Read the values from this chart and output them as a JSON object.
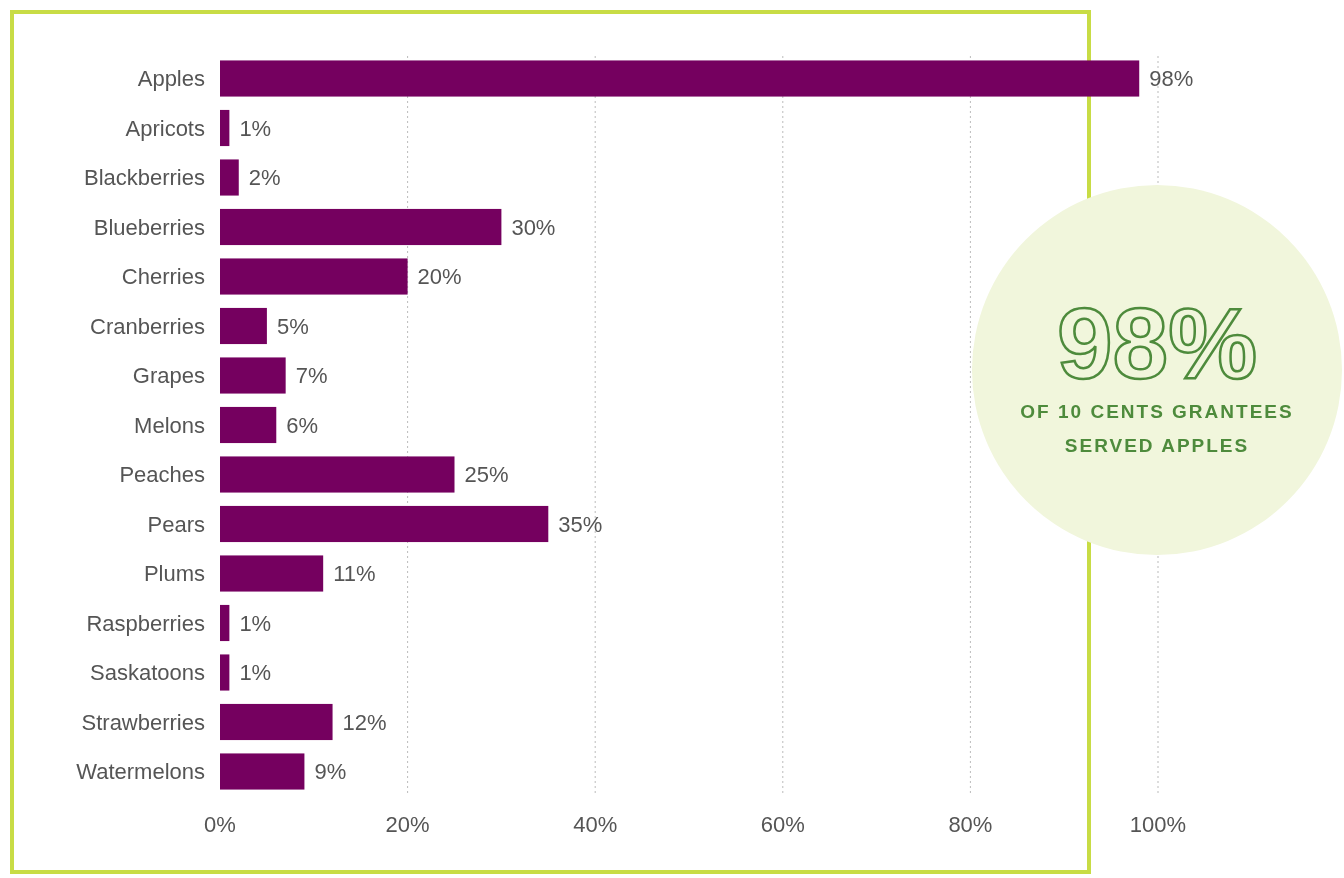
{
  "chart_data": {
    "type": "bar",
    "orientation": "horizontal",
    "categories": [
      "Apples",
      "Apricots",
      "Blackberries",
      "Blueberries",
      "Cherries",
      "Cranberries",
      "Grapes",
      "Melons",
      "Peaches",
      "Pears",
      "Plums",
      "Raspberries",
      "Saskatoons",
      "Strawberries",
      "Watermelons"
    ],
    "values": [
      98,
      1,
      2,
      30,
      20,
      5,
      7,
      6,
      25,
      35,
      11,
      1,
      1,
      12,
      9
    ],
    "value_labels": [
      "98%",
      "1%",
      "2%",
      "30%",
      "20%",
      "5%",
      "7%",
      "6%",
      "25%",
      "35%",
      "11%",
      "1%",
      "1%",
      "12%",
      "9%"
    ],
    "color": "#75005f",
    "xlim": [
      0,
      100
    ],
    "xticks": [
      {
        "value": 0,
        "label": "0%"
      },
      {
        "value": 20,
        "label": "20%"
      },
      {
        "value": 40,
        "label": "40%"
      },
      {
        "value": 60,
        "label": "60%"
      },
      {
        "value": 80,
        "label": "80%"
      },
      {
        "value": 100,
        "label": "100%"
      }
    ],
    "grid": "x",
    "annotations": [
      "98%",
      "OF 10 CENTS GRANTEES SERVED APPLES"
    ]
  }
}
